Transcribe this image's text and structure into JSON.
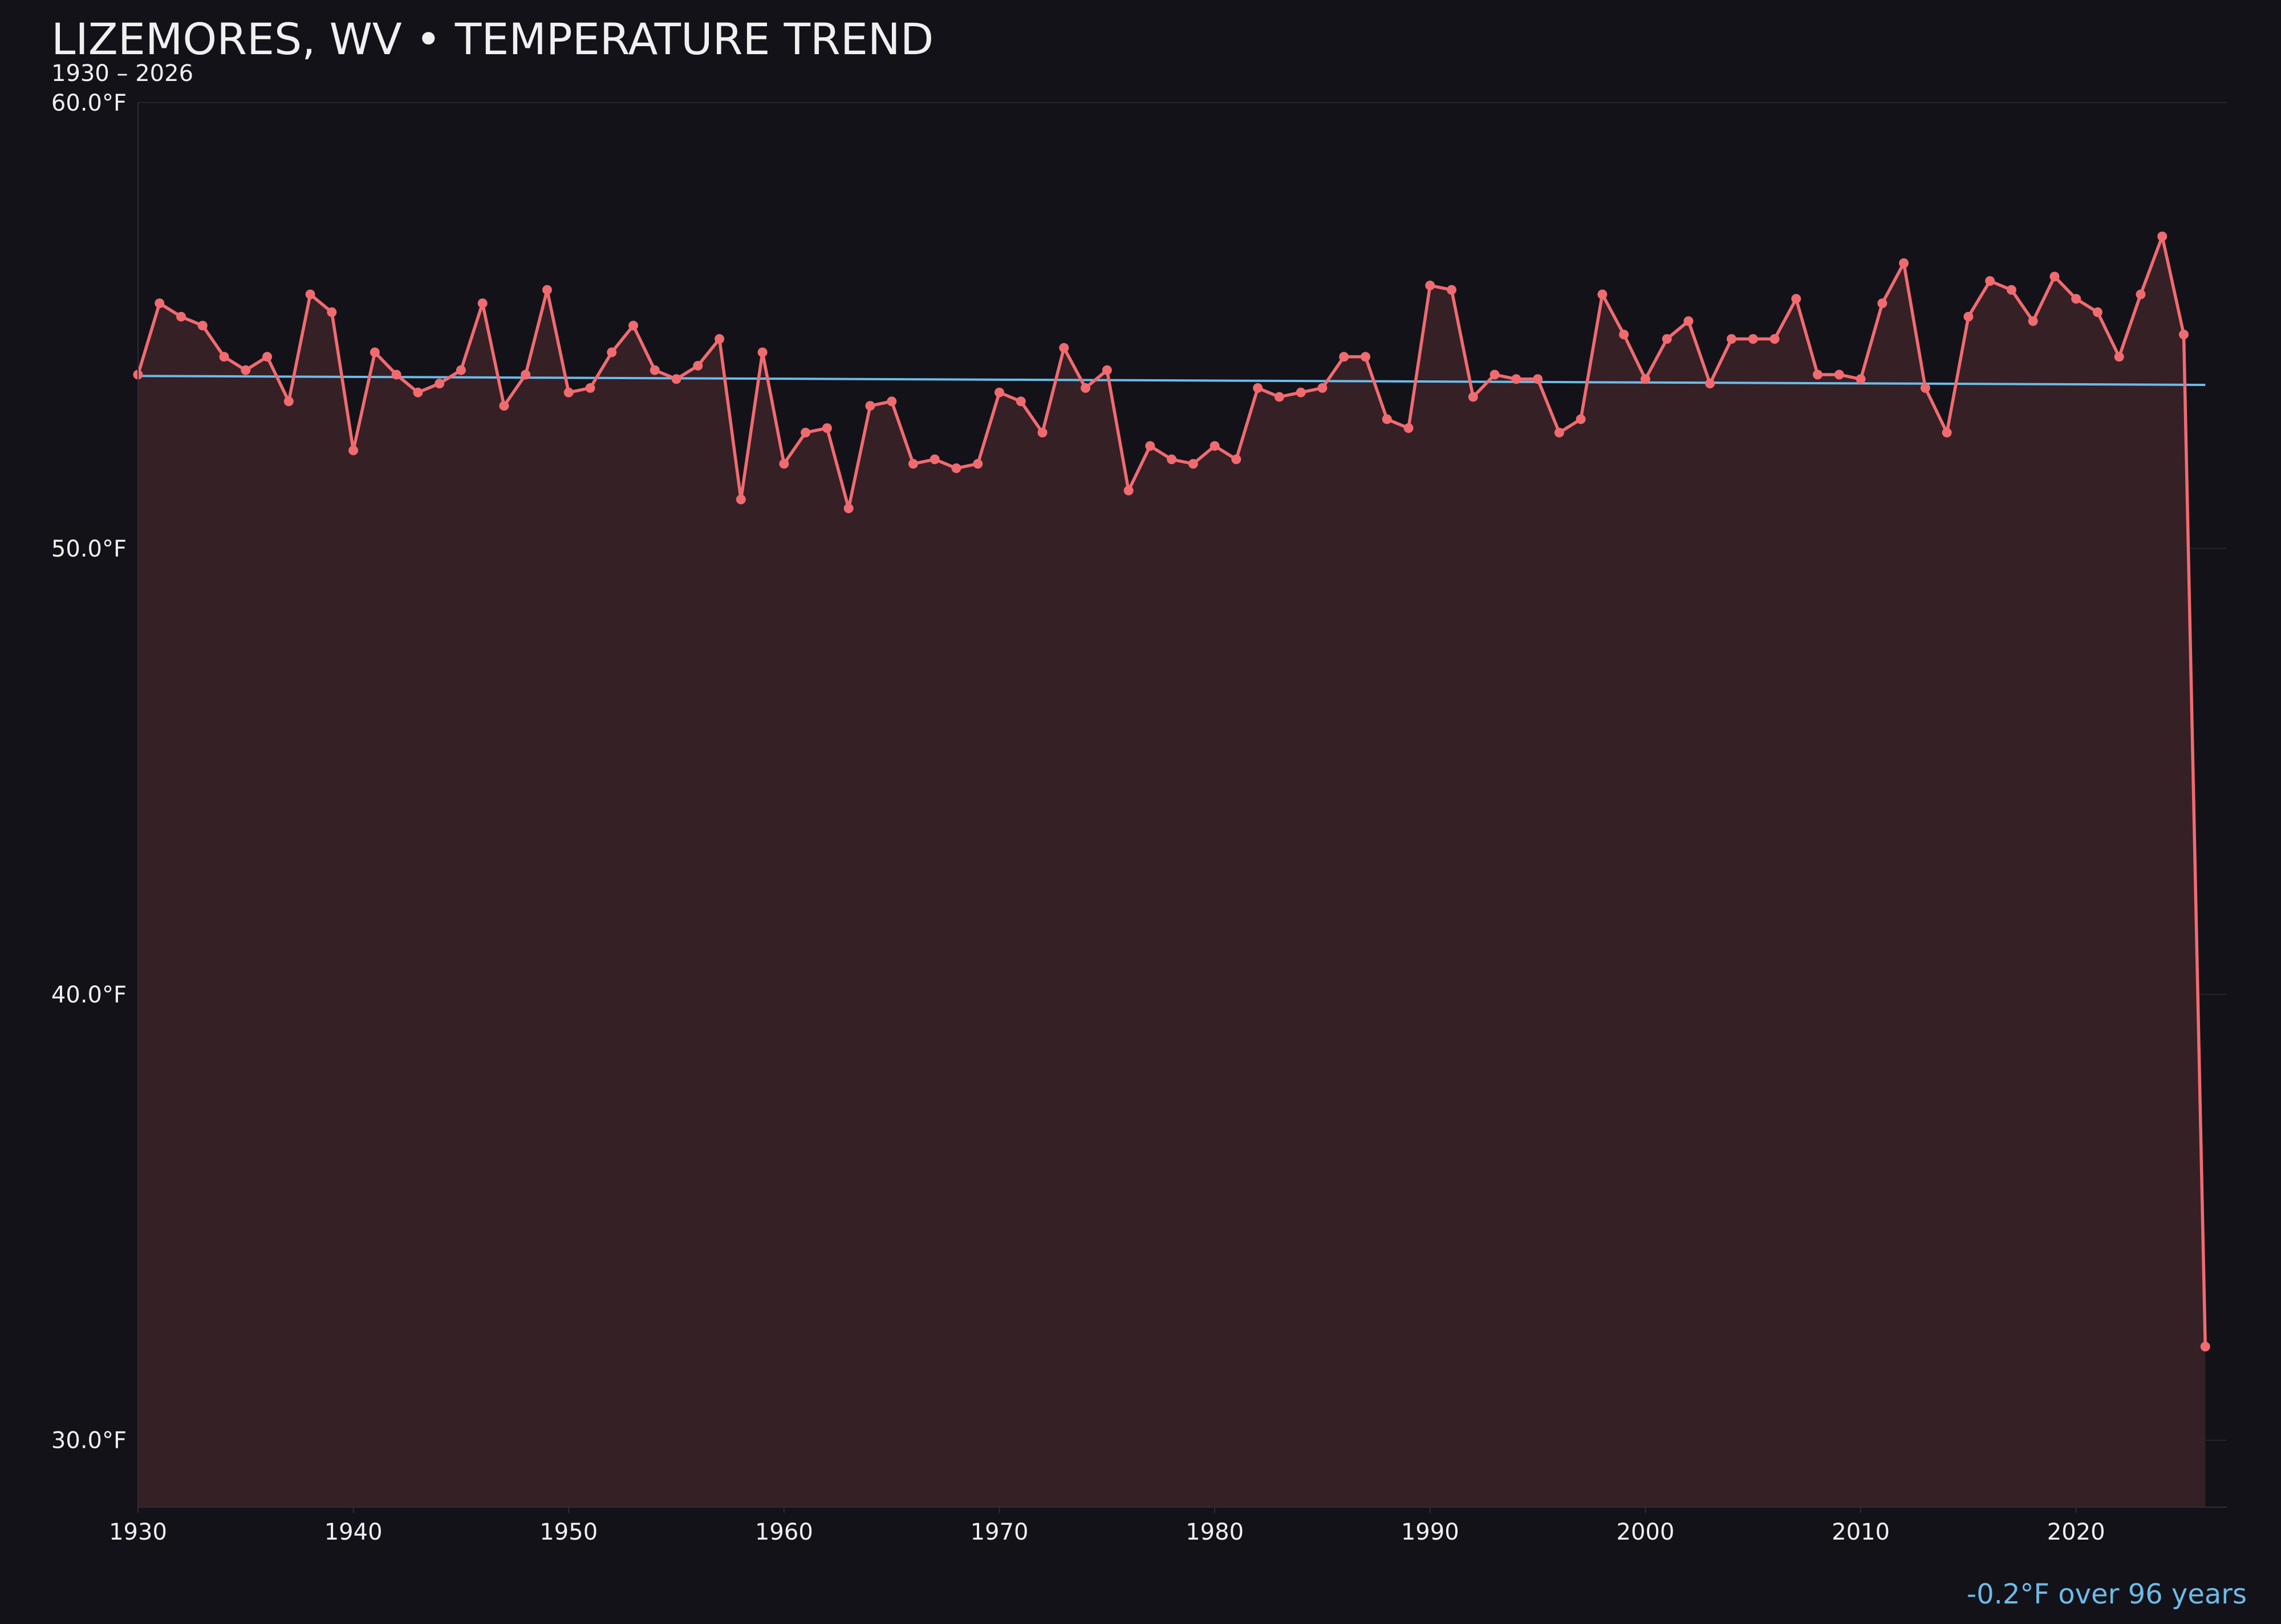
{
  "title": "LIZEMORES, WV • TEMPERATURE TREND",
  "subtitle": "1930 – 2026",
  "trend_note": "-0.2°F over 96 years",
  "colors": {
    "background": "#131219",
    "line": "#f06b70",
    "area_fill": "#352026",
    "trend": "#6cbbe8",
    "text": "#f0f0f0",
    "grid": "#26242c"
  },
  "chart_data": {
    "type": "line",
    "title": "LIZEMORES, WV • TEMPERATURE TREND",
    "subtitle": "1930 – 2026",
    "xlabel": "",
    "ylabel": "",
    "xlim": [
      1930,
      2027
    ],
    "ylim": [
      28.5,
      60.0
    ],
    "y_ticks": [
      30.0,
      40.0,
      50.0,
      60.0
    ],
    "y_tick_labels": [
      "30.0°F",
      "40.0°F",
      "50.0°F",
      "60.0°F"
    ],
    "x_ticks": [
      1930,
      1940,
      1950,
      1960,
      1970,
      1980,
      1990,
      2000,
      2010,
      2020
    ],
    "x_tick_labels": [
      "1930",
      "1940",
      "1950",
      "1960",
      "1970",
      "1980",
      "1990",
      "2000",
      "2010",
      "2020"
    ],
    "grid": true,
    "area_filled": true,
    "x": [
      1930,
      1931,
      1932,
      1933,
      1934,
      1935,
      1936,
      1937,
      1938,
      1939,
      1940,
      1941,
      1942,
      1943,
      1944,
      1945,
      1946,
      1947,
      1948,
      1949,
      1950,
      1951,
      1952,
      1953,
      1954,
      1955,
      1956,
      1957,
      1958,
      1959,
      1960,
      1961,
      1962,
      1963,
      1964,
      1965,
      1966,
      1967,
      1968,
      1969,
      1970,
      1971,
      1972,
      1973,
      1974,
      1975,
      1976,
      1977,
      1978,
      1979,
      1980,
      1981,
      1982,
      1983,
      1984,
      1985,
      1986,
      1987,
      1988,
      1989,
      1990,
      1991,
      1992,
      1993,
      1994,
      1995,
      1996,
      1997,
      1998,
      1999,
      2000,
      2001,
      2002,
      2003,
      2004,
      2005,
      2006,
      2007,
      2008,
      2009,
      2010,
      2011,
      2012,
      2013,
      2014,
      2015,
      2016,
      2017,
      2018,
      2019,
      2020,
      2021,
      2022,
      2023,
      2024,
      2025,
      2026
    ],
    "values": [
      53.9,
      55.5,
      55.2,
      55.0,
      54.3,
      54.0,
      54.3,
      53.3,
      55.7,
      55.3,
      52.2,
      54.4,
      53.9,
      53.5,
      53.7,
      54.0,
      55.5,
      53.2,
      53.9,
      55.8,
      53.5,
      53.6,
      54.4,
      55.0,
      54.0,
      53.8,
      54.1,
      54.7,
      51.1,
      54.4,
      51.9,
      52.6,
      52.7,
      50.9,
      53.2,
      53.3,
      51.9,
      52.0,
      51.8,
      51.9,
      53.5,
      53.3,
      52.6,
      54.5,
      53.6,
      54.0,
      51.3,
      52.3,
      52.0,
      51.9,
      52.3,
      52.0,
      53.6,
      53.4,
      53.5,
      53.6,
      54.3,
      54.3,
      52.9,
      52.7,
      55.9,
      55.8,
      53.4,
      53.9,
      53.8,
      53.8,
      52.6,
      52.9,
      55.7,
      54.8,
      53.8,
      54.7,
      55.1,
      53.7,
      54.7,
      54.7,
      54.7,
      55.6,
      53.9,
      53.9,
      53.8,
      55.5,
      56.4,
      53.6,
      52.6,
      55.2,
      56.0,
      55.8,
      55.1,
      56.1,
      55.6,
      55.3,
      54.3,
      55.7,
      57.0,
      54.8,
      32.1
    ],
    "series": [
      {
        "values_ref": "values",
        "kind": "annual"
      },
      {
        "kind": "trend",
        "start": [
          1930,
          53.87
        ],
        "end": [
          2026,
          53.67
        ]
      }
    ]
  }
}
